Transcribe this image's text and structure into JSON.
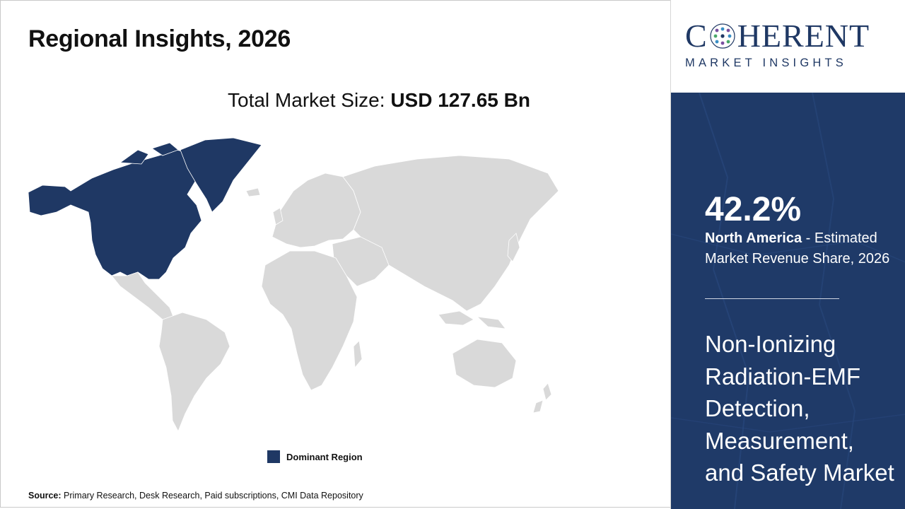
{
  "header": {
    "title": "Regional Insights, 2026",
    "total_label": "Total Market Size: ",
    "total_value": "USD 127.65 Bn"
  },
  "map": {
    "dominant_region": "North America",
    "dominant_color": "#1f3864",
    "other_color": "#d9d9d9"
  },
  "legend": {
    "label": "Dominant Region"
  },
  "source": {
    "label": "Source:",
    "text": " Primary Research, Desk Research, Paid subscriptions, CMI Data Repository"
  },
  "brand": {
    "logo_left": "C",
    "logo_right": "HERENT",
    "logo_sub": "MARKET INSIGHTS",
    "color": "#1f3864"
  },
  "panel": {
    "share": "42.2%",
    "region": "North America",
    "share_desc": " - Estimated Market Revenue Share, 2026",
    "market_name": "Non-Ionizing Radiation-EMF Detection, Measurement, and Safety Market",
    "bg_color": "#1f3a68"
  }
}
